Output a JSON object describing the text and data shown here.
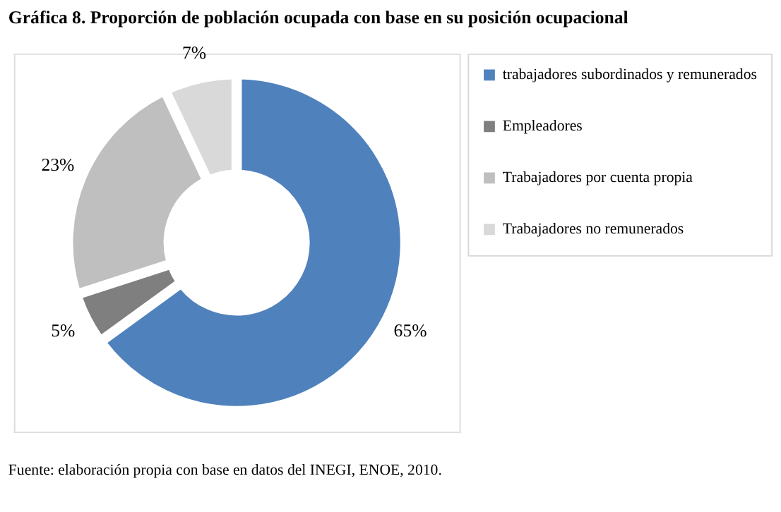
{
  "chart_data": {
    "type": "donut",
    "title": "Gráfica 8. Proporción de población ocupada con base en su posición ocupacional",
    "categories": [
      "trabajadores subordinados y remunerados",
      "Empleadores",
      "Trabajadores por cuenta propia",
      "Trabajadores no remunerados"
    ],
    "values": [
      65,
      5,
      23,
      7
    ],
    "colors": [
      "#4f81bd",
      "#7f7f7f",
      "#bfbfbf",
      "#d9d9d9"
    ],
    "value_labels": [
      "65%",
      "5%",
      "23%",
      "7%"
    ],
    "legend": "right",
    "annotations": [
      "Fuente: elaboración propia con base en datos del INEGI, ENOE, 2010."
    ]
  }
}
